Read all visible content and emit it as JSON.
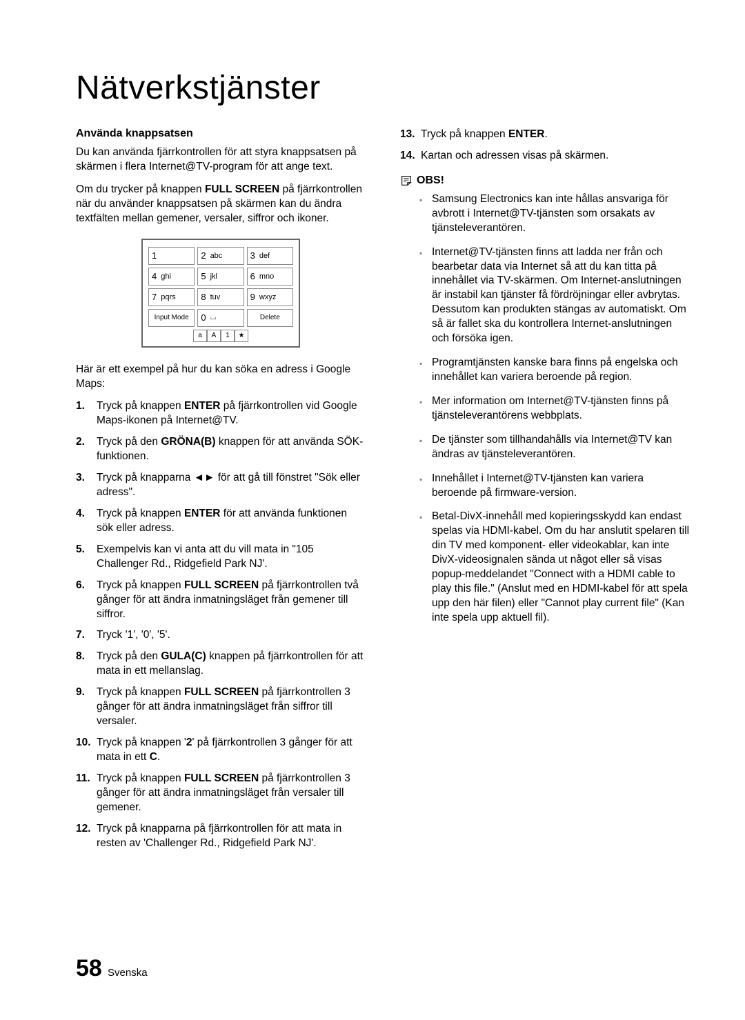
{
  "title": "Nätverkstjänster",
  "left": {
    "heading": "Använda knappsatsen",
    "p1": "Du kan använda fjärrkontrollen för att styra knappsatsen på skärmen i flera Internet@TV-program för att ange text.",
    "p2_pre": "Om du trycker på knappen ",
    "p2_b": "FULL SCREEN",
    "p2_post": " på fjärrkontrollen när du använder knappsatsen på skärmen kan du ändra textfälten mellan gemener, versaler, siffror och ikoner.",
    "keypad": {
      "rows": [
        [
          {
            "n": "1",
            "t": ""
          },
          {
            "n": "2",
            "t": "abc"
          },
          {
            "n": "3",
            "t": "def"
          }
        ],
        [
          {
            "n": "4",
            "t": "ghi"
          },
          {
            "n": "5",
            "t": "jkl"
          },
          {
            "n": "6",
            "t": "mno"
          }
        ],
        [
          {
            "n": "7",
            "t": "pqrs"
          },
          {
            "n": "8",
            "t": "tuv"
          },
          {
            "n": "9",
            "t": "wxyz"
          }
        ]
      ],
      "bottom_left": "Input Mode",
      "bottom_mid_n": "0",
      "bottom_mid_t": "⌴",
      "bottom_right": "Delete",
      "mini": [
        "a",
        "A",
        "1",
        "★"
      ]
    },
    "p3": "Här är ett exempel på hur du kan söka en adress i Google Maps:",
    "steps": [
      {
        "pre": "Tryck på knappen ",
        "b": "ENTER",
        "post": " på fjärrkontrollen vid Google Maps-ikonen på Internet@TV."
      },
      {
        "pre": "Tryck på den ",
        "b": "GRÖNA(B)",
        "post": " knappen för att använda SÖK-funktionen."
      },
      {
        "pre": "Tryck på knapparna ◄► för att gå till fönstret \"Sök eller adress\"."
      },
      {
        "pre": "Tryck på knappen ",
        "b": "ENTER",
        "post": " för att använda funktionen sök eller adress."
      },
      {
        "pre": "Exempelvis kan vi anta att du vill mata in \"105 Challenger Rd., Ridgefield Park NJ'."
      },
      {
        "pre": "Tryck på knappen ",
        "b": "FULL SCREEN",
        "post": " på fjärrkontrollen två gånger för att ändra inmatningsläget från gemener till siffror."
      },
      {
        "pre": "Tryck '1', '0', '5'."
      },
      {
        "pre": "Tryck på den ",
        "b": "GULA(C)",
        "post": " knappen på fjärrkontrollen för att mata in ett mellanslag."
      },
      {
        "pre": "Tryck på knappen ",
        "b": "FULL SCREEN",
        "post": " på fjärrkontrollen 3 gånger för att ändra inmatningsläget från siffror till versaler."
      },
      {
        "pre": "Tryck på knappen '",
        "b": "2",
        "post": "' på fjärrkontrollen 3 gånger för att mata in ett ",
        "b2": "C",
        "post2": "."
      },
      {
        "pre": "Tryck på knappen ",
        "b": "FULL SCREEN",
        "post": " på fjärrkontrollen 3 gånger för att ändra inmatningsläget från versaler till gemener."
      },
      {
        "pre": "Tryck på knapparna på fjärrkontrollen för att mata in resten av 'Challenger Rd., Ridgefield Park NJ'."
      }
    ]
  },
  "right": {
    "steps": [
      {
        "n": "13",
        "pre": "Tryck på knappen ",
        "b": "ENTER",
        "post": "."
      },
      {
        "n": "14",
        "pre": "Kartan och adressen visas på skärmen."
      }
    ],
    "obs_label": "OBS!",
    "notes": [
      "Samsung Electronics kan inte hållas ansvariga för avbrott i Internet@TV-tjänsten som orsakats av tjänsteleverantören.",
      "Internet@TV-tjänsten finns att ladda ner från och bearbetar data via Internet så att du kan titta på innehållet via TV-skärmen. Om Internet-anslutningen är instabil kan tjänster få fördröjningar eller avbrytas. Dessutom kan produkten stängas av automatiskt. Om så är fallet ska du kontrollera Internet-anslutningen och försöka igen.",
      "Programtjänsten kanske bara finns på engelska och innehållet kan variera beroende på region.",
      "Mer information om Internet@TV-tjänsten finns på tjänsteleverantörens webbplats.",
      "De tjänster som tillhandahålls via Internet@TV kan ändras av tjänsteleverantören.",
      "Innehållet i Internet@TV-tjänsten kan variera beroende på firmware-version.",
      "Betal-DivX-innehåll med kopieringsskydd kan endast spelas via HDMI-kabel. Om du har anslutit spelaren till din TV med komponent- eller videokablar, kan inte DivX-videosignalen sända ut något eller så visas popup-meddelandet \"Connect with a HDMI cable to play this file.\" (Anslut med en HDMI-kabel för att spela upp den här filen) eller \"Cannot play current file\" (Kan inte spela upp aktuell fil)."
    ]
  },
  "footer": {
    "page": "58",
    "lang": "Svenska"
  }
}
